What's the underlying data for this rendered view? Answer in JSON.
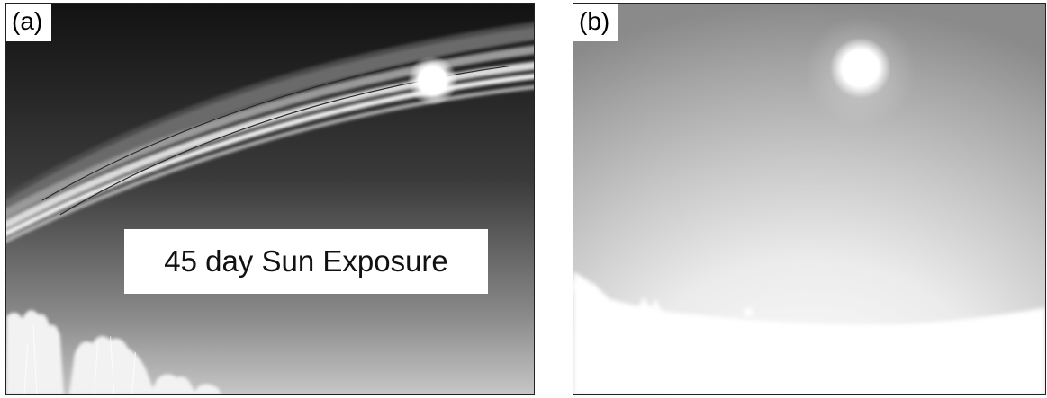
{
  "panels": [
    {
      "label": "(a)",
      "caption": "45 day Sun Exposure",
      "image": "sky camera frame with sun and degraded dome streaks, trees at bottom"
    },
    {
      "label": "(b)",
      "image": "clean sky camera frame with sun, bright horizon"
    }
  ]
}
